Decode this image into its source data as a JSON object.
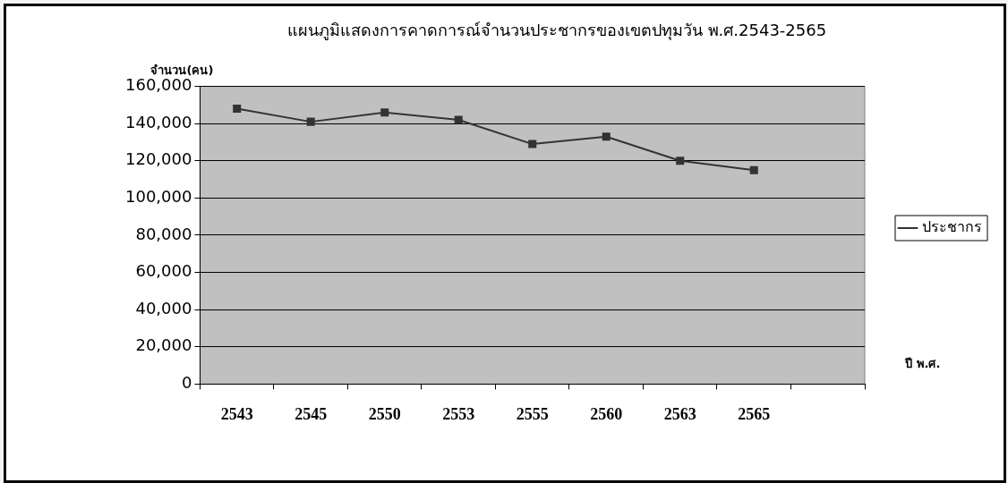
{
  "chart_data": {
    "type": "line",
    "title": "แผนภูมิแสดงการคาดการณ์จำนวนประชากรของเขตปทุมวัน พ.ศ.2543-2565",
    "ylabel": "จำนวน(คน)",
    "xlabel": "ปี พ.ศ.",
    "categories": [
      "2543",
      "2545",
      "2550",
      "2553",
      "2555",
      "2560",
      "2563",
      "2565",
      null
    ],
    "series": [
      {
        "name": "ประชากร",
        "color": "#333333",
        "values": [
          148000,
          141000,
          146000,
          142000,
          129000,
          133000,
          120000,
          115000,
          null
        ]
      }
    ],
    "ylim": [
      0,
      160000
    ],
    "yticks": [
      0,
      {
        "value": 20000,
        "label": "20,000"
      },
      {
        "value": 40000,
        "label": "40,000"
      },
      {
        "value": 60000,
        "label": "60,000"
      },
      {
        "value": 80000,
        "label": "80,000"
      },
      {
        "value": 100000,
        "label": "100,000"
      },
      {
        "value": 120000,
        "label": "120,000"
      },
      {
        "value": 140000,
        "label": "140,000"
      },
      {
        "value": 160000,
        "label": "160,000"
      }
    ],
    "grid": "y",
    "legend": "right",
    "marker": "square",
    "line_style": "solid"
  }
}
